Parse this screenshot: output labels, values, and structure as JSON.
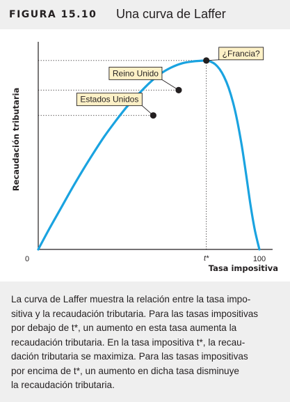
{
  "header": {
    "figure_label": "FIGURA 15.10",
    "title": "Una curva de Laffer"
  },
  "colors": {
    "curve": "#1aa3e0",
    "label_fill": "#fdf1c7",
    "header_bg": "#efefef",
    "point": "#231f20"
  },
  "chart_data": {
    "type": "line",
    "title": "Una curva de Laffer",
    "xlabel": "Tasa impositiva",
    "ylabel": "Recaudación tributaria",
    "xlim": [
      0,
      100
    ],
    "ylim": [
      0,
      100
    ],
    "grid": false,
    "x_tick_labels": [
      {
        "x": 0,
        "label": "0"
      },
      {
        "x": 76,
        "label": "t*"
      },
      {
        "x": 100,
        "label": "100"
      }
    ],
    "series": [
      {
        "name": "",
        "x": [
          0,
          5,
          10,
          15,
          20,
          25,
          30,
          35,
          40,
          45,
          50,
          55,
          60,
          65,
          70,
          73,
          76,
          78,
          80,
          82,
          84,
          86,
          88,
          90,
          92,
          94,
          96,
          98,
          100
        ],
        "y": [
          0,
          11,
          21.5,
          32,
          42,
          51.5,
          60.5,
          68.5,
          76,
          82.5,
          88.5,
          93.5,
          97,
          99.3,
          100.3,
          100.6,
          100.8,
          100.2,
          98.8,
          96.2,
          92.2,
          86.5,
          78.8,
          68.5,
          55.5,
          40,
          23.5,
          10,
          0
        ]
      }
    ],
    "points": [
      {
        "label": "Estados Unidos",
        "x": 52,
        "y": 71.5
      },
      {
        "label": "Reino Unido",
        "x": 63.5,
        "y": 85
      },
      {
        "label": "¿Francia?",
        "x": 76,
        "y": 100.8
      }
    ]
  },
  "caption": {
    "lines": [
      "La curva de Laffer muestra la relación entre la tasa impo-",
      "sitiva y la recaudación tributaria. Para las tasas impositivas",
      "por debajo de t*, un aumento en esta tasa aumenta la",
      "recaudación tributaria. En la tasa impositiva t*, la recau-",
      "dación tributaria se maximiza. Para las tasas impositivas",
      "por encima de t*, un aumento en dicha tasa disminuye",
      "la recaudación tributaria."
    ]
  }
}
